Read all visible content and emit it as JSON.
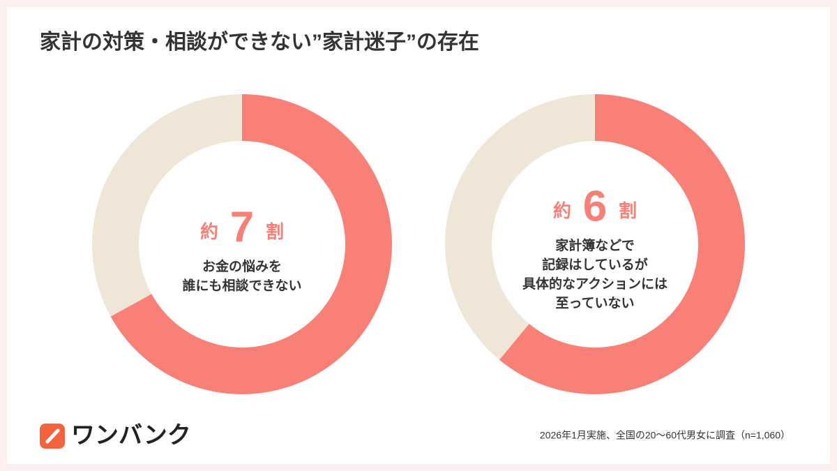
{
  "title": "家計の対策・相談ができない”家計迷子”の存在",
  "chart_data": [
    {
      "type": "pie",
      "donut": true,
      "values": [
        67,
        33
      ],
      "colors": [
        "#f98077",
        "#efe6d8"
      ],
      "annotation": {
        "prefix": "約",
        "number": "7",
        "suffix": "割"
      },
      "caption": [
        "お金の悩みを",
        "誰にも相談できない"
      ]
    },
    {
      "type": "pie",
      "donut": true,
      "values": [
        61,
        39
      ],
      "colors": [
        "#f98077",
        "#efe6d8"
      ],
      "annotation": {
        "prefix": "約",
        "number": "6",
        "suffix": "割"
      },
      "caption": [
        "家計簿などで",
        "記録はしているが",
        "具体的なアクションには",
        "至っていない"
      ]
    }
  ],
  "logo": "ワンバンク",
  "footnote": "2026年1月実施、全国の20〜60代男女に調査（n=1,060）"
}
